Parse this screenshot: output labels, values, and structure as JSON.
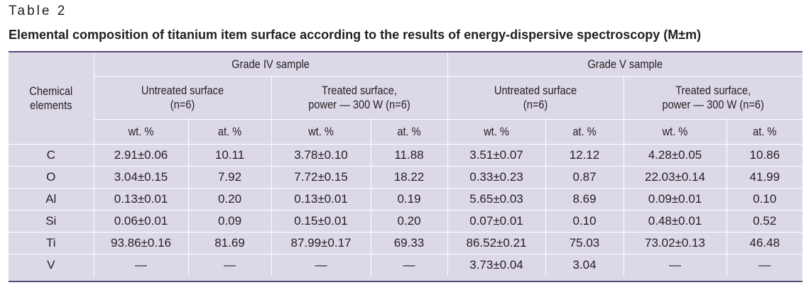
{
  "table_number": "Table 2",
  "caption": "Elemental composition of titanium item surface according to the results of energy-dispersive spectroscopy (M±m)",
  "header": {
    "row_header_line1": "Chemical",
    "row_header_line2": "elements",
    "groups": [
      {
        "label": "Grade IV sample",
        "subgroups": [
          {
            "line1": "Untreated surface",
            "line2": "(n=6)"
          },
          {
            "line1": "Treated surface,",
            "line2": "power — 300 W (n=6)"
          }
        ]
      },
      {
        "label": "Grade V sample",
        "subgroups": [
          {
            "line1": "Untreated surface",
            "line2": "(n=6)"
          },
          {
            "line1": "Treated surface,",
            "line2": "power — 300 W (n=6)"
          }
        ]
      }
    ],
    "units": [
      "wt. %",
      "at. %",
      "wt. %",
      "at. %",
      "wt. %",
      "at. %",
      "wt. %",
      "at. %"
    ]
  },
  "rows": [
    {
      "element": "C",
      "values": [
        "2.91±0.06",
        "10.11",
        "3.78±0.10",
        "11.88",
        "3.51±0.07",
        "12.12",
        "4.28±0.05",
        "10.86"
      ]
    },
    {
      "element": "O",
      "values": [
        "3.04±0.15",
        "7.92",
        "7.72±0.15",
        "18.22",
        "0.33±0.23",
        "0.87",
        "22.03±0.14",
        "41.99"
      ]
    },
    {
      "element": "Al",
      "values": [
        "0.13±0.01",
        "0.20",
        "0.13±0.01",
        "0.19",
        "5.65±0.03",
        "8.69",
        "0.09±0.01",
        "0.10"
      ]
    },
    {
      "element": "Si",
      "values": [
        "0.06±0.01",
        "0.09",
        "0.15±0.01",
        "0.20",
        "0.07±0.01",
        "0.10",
        "0.48±0.01",
        "0.52"
      ]
    },
    {
      "element": "Ti",
      "values": [
        "93.86±0.16",
        "81.69",
        "87.99±0.17",
        "69.33",
        "86.52±0.21",
        "75.03",
        "73.02±0.13",
        "46.48"
      ]
    },
    {
      "element": "V",
      "values": [
        "—",
        "—",
        "—",
        "—",
        "3.73±0.04",
        "3.04",
        "—",
        "—"
      ]
    }
  ],
  "colors": {
    "table_background": "#ddd8e8",
    "rule": "#5a4a7a",
    "text": "#231f20"
  }
}
